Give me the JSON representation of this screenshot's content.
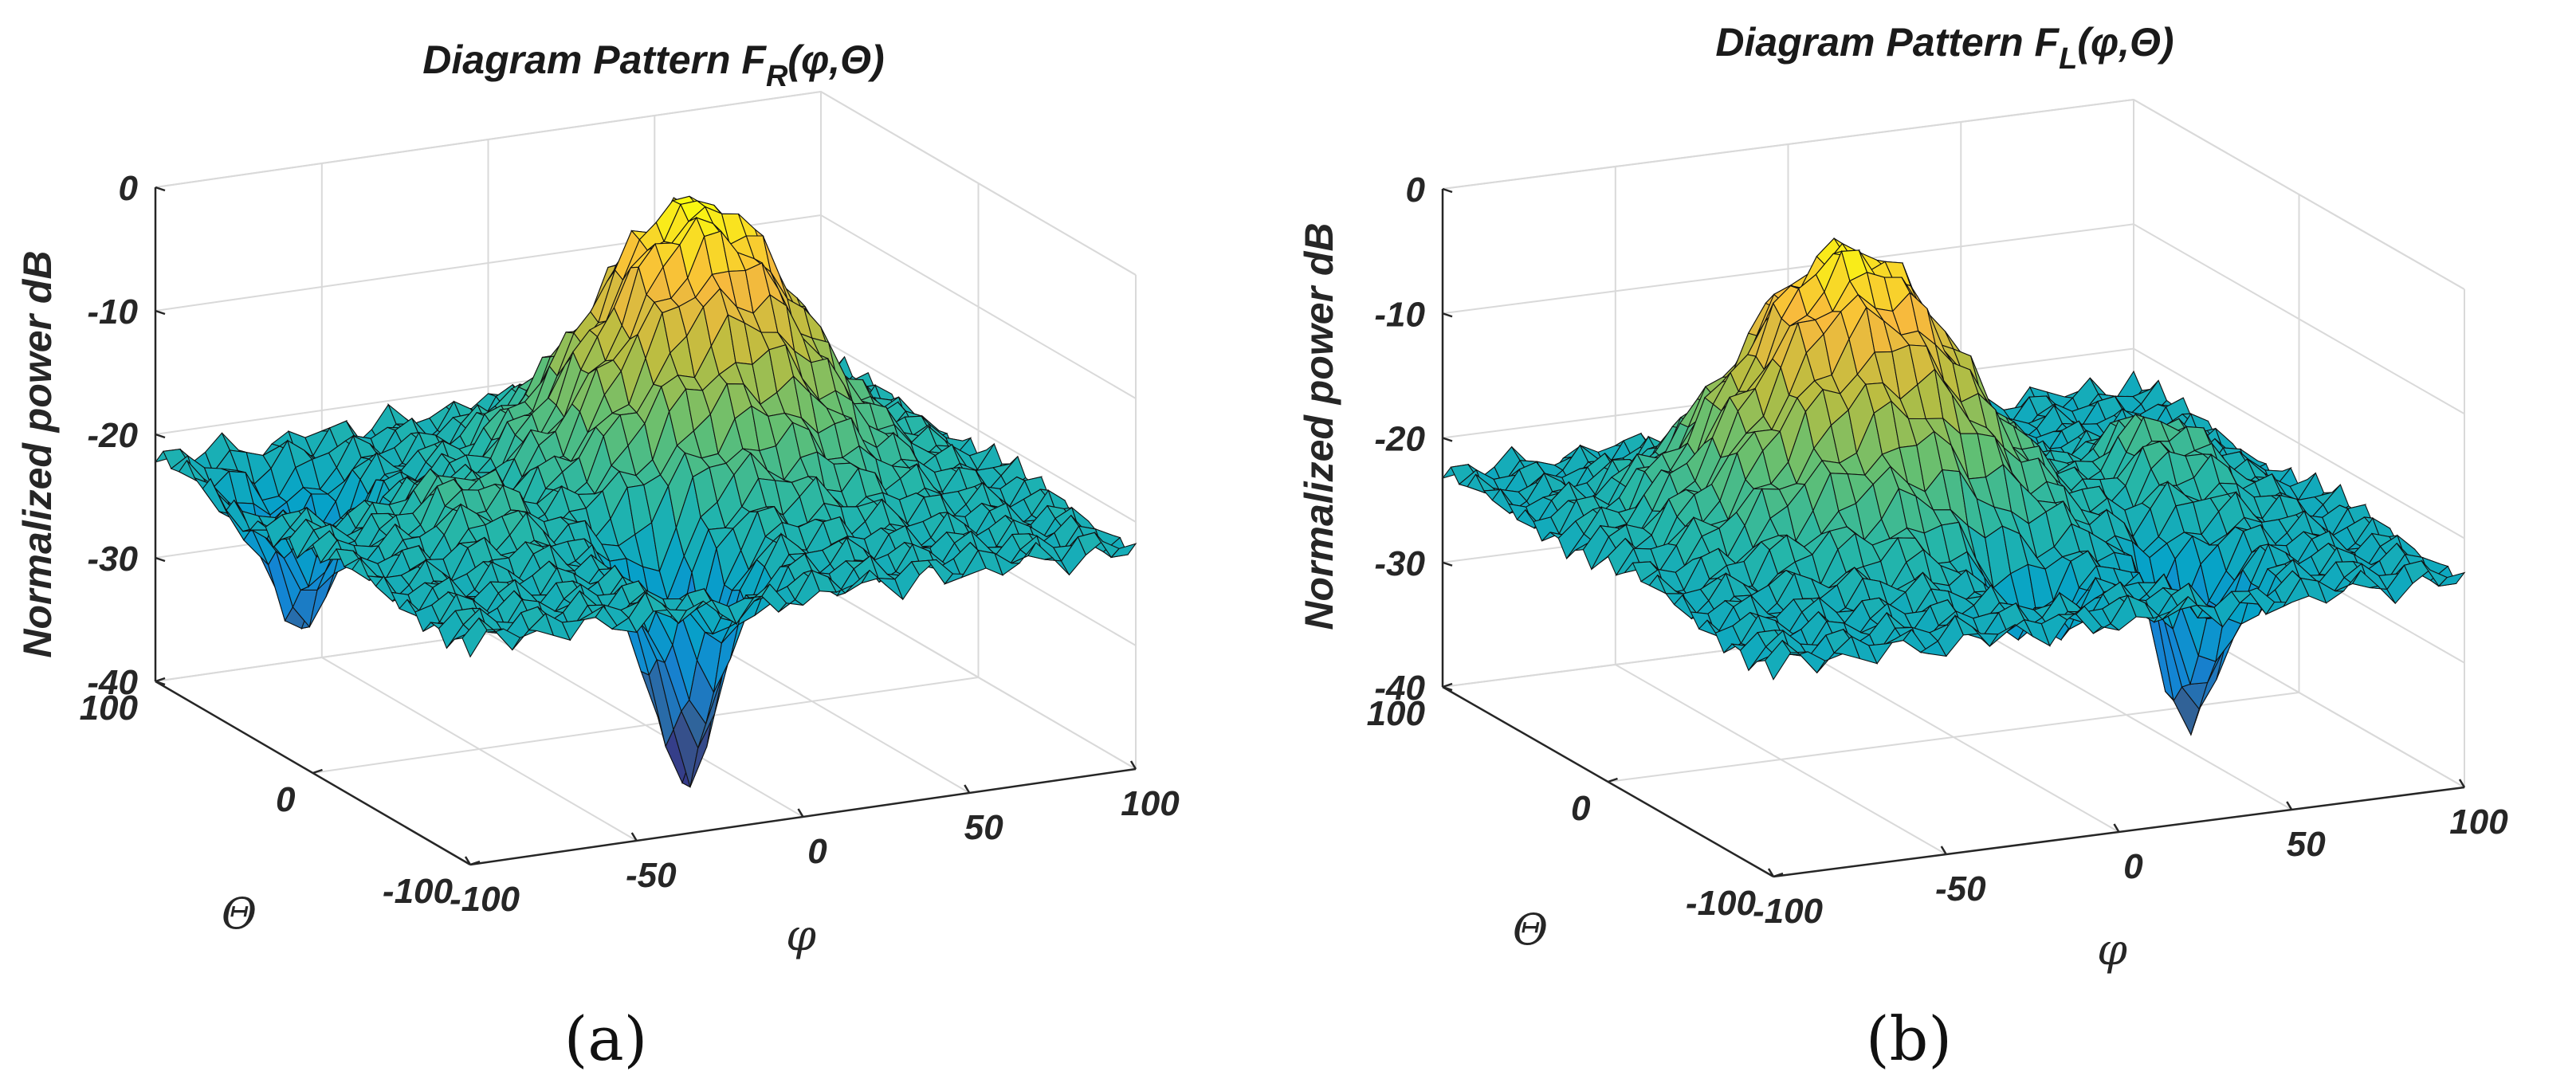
{
  "chart_data": [
    {
      "type": "surface3d",
      "panel_label": "(a)",
      "title": "Diagram Pattern F_R(φ,Θ)",
      "title_prefix": "Diagram Pattern F",
      "title_sub": "R",
      "title_suffix": "(φ,Θ)",
      "xlabel": "φ",
      "ylabel": "Θ",
      "zlabel": "Normalized power dB",
      "xlim": [
        -100,
        100
      ],
      "ylim": [
        -100,
        100
      ],
      "zlim": [
        -40,
        0
      ],
      "xticks": [
        "-100",
        "-50",
        "0",
        "50",
        "100"
      ],
      "yticks": [
        "-100",
        "0",
        "100"
      ],
      "zticks": [
        "0",
        "-10",
        "-20",
        "-30",
        "-40"
      ],
      "colormap": "parula",
      "surface": {
        "floor_db": -22,
        "lobes": [
          {
            "phi": 25,
            "theta": 20,
            "peak_db": 0,
            "width_phi": 38,
            "width_theta": 45
          },
          {
            "phi": -55,
            "theta": -5,
            "peak_db": -18,
            "width_phi": 18,
            "width_theta": 30
          }
        ],
        "nulls": [
          {
            "phi": -15,
            "theta": -55,
            "depth_db": -40,
            "width_phi": 12,
            "width_theta": 22
          },
          {
            "phi": -75,
            "theta": 60,
            "depth_db": -33,
            "width_phi": 14,
            "width_theta": 20
          }
        ]
      }
    },
    {
      "type": "surface3d",
      "panel_label": "(b)",
      "title": "Diagram Pattern F_L(φ,Θ)",
      "title_prefix": "Diagram Pattern F",
      "title_sub": "L",
      "title_suffix": "(φ,Θ)",
      "xlabel": "φ",
      "ylabel": "Θ",
      "zlabel": "Normalized power dB",
      "xlim": [
        -100,
        100
      ],
      "ylim": [
        -100,
        100
      ],
      "zlim": [
        -40,
        0
      ],
      "xticks": [
        "-100",
        "-50",
        "0",
        "50",
        "100"
      ],
      "yticks": [
        "-100",
        "0",
        "100"
      ],
      "zticks": [
        "0",
        "-10",
        "-20",
        "-30",
        "-40"
      ],
      "colormap": "parula",
      "surface": {
        "floor_db": -23,
        "lobes": [
          {
            "phi": -25,
            "theta": 10,
            "peak_db": -1,
            "width_phi": 40,
            "width_theta": 45
          },
          {
            "phi": 60,
            "theta": 0,
            "peak_db": -17,
            "width_phi": 18,
            "width_theta": 30
          }
        ],
        "nulls": [
          {
            "phi": 40,
            "theta": -60,
            "depth_db": -36,
            "width_phi": 10,
            "width_theta": 18
          },
          {
            "phi": -5,
            "theta": -55,
            "depth_db": -29,
            "width_phi": 16,
            "width_theta": 18
          }
        ]
      }
    }
  ]
}
